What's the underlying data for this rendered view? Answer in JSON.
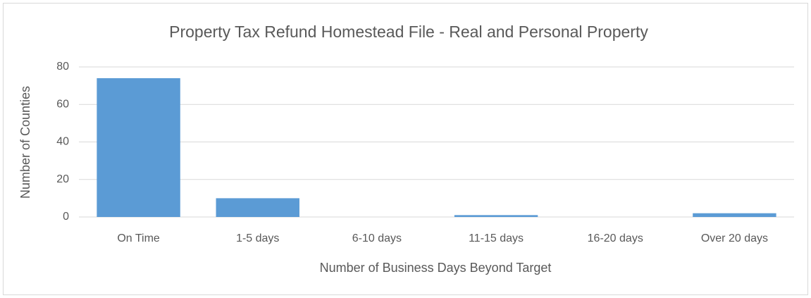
{
  "chart_data": {
    "type": "bar",
    "title": "Property Tax Refund Homestead File - Real and Personal Property",
    "x_label": "Number of Business Days Beyond Target",
    "y_label": "Number of Counties",
    "categories": [
      "On Time",
      "1-5 days",
      "6-10 days",
      "11-15 days",
      "16-20 days",
      "Over 20 days"
    ],
    "values": [
      74,
      10,
      0,
      1,
      0,
      2
    ],
    "color": "#5b9bd5",
    "ylim": [
      0,
      80
    ],
    "yticks": [
      0,
      20,
      40,
      60,
      80
    ],
    "grid": true
  }
}
